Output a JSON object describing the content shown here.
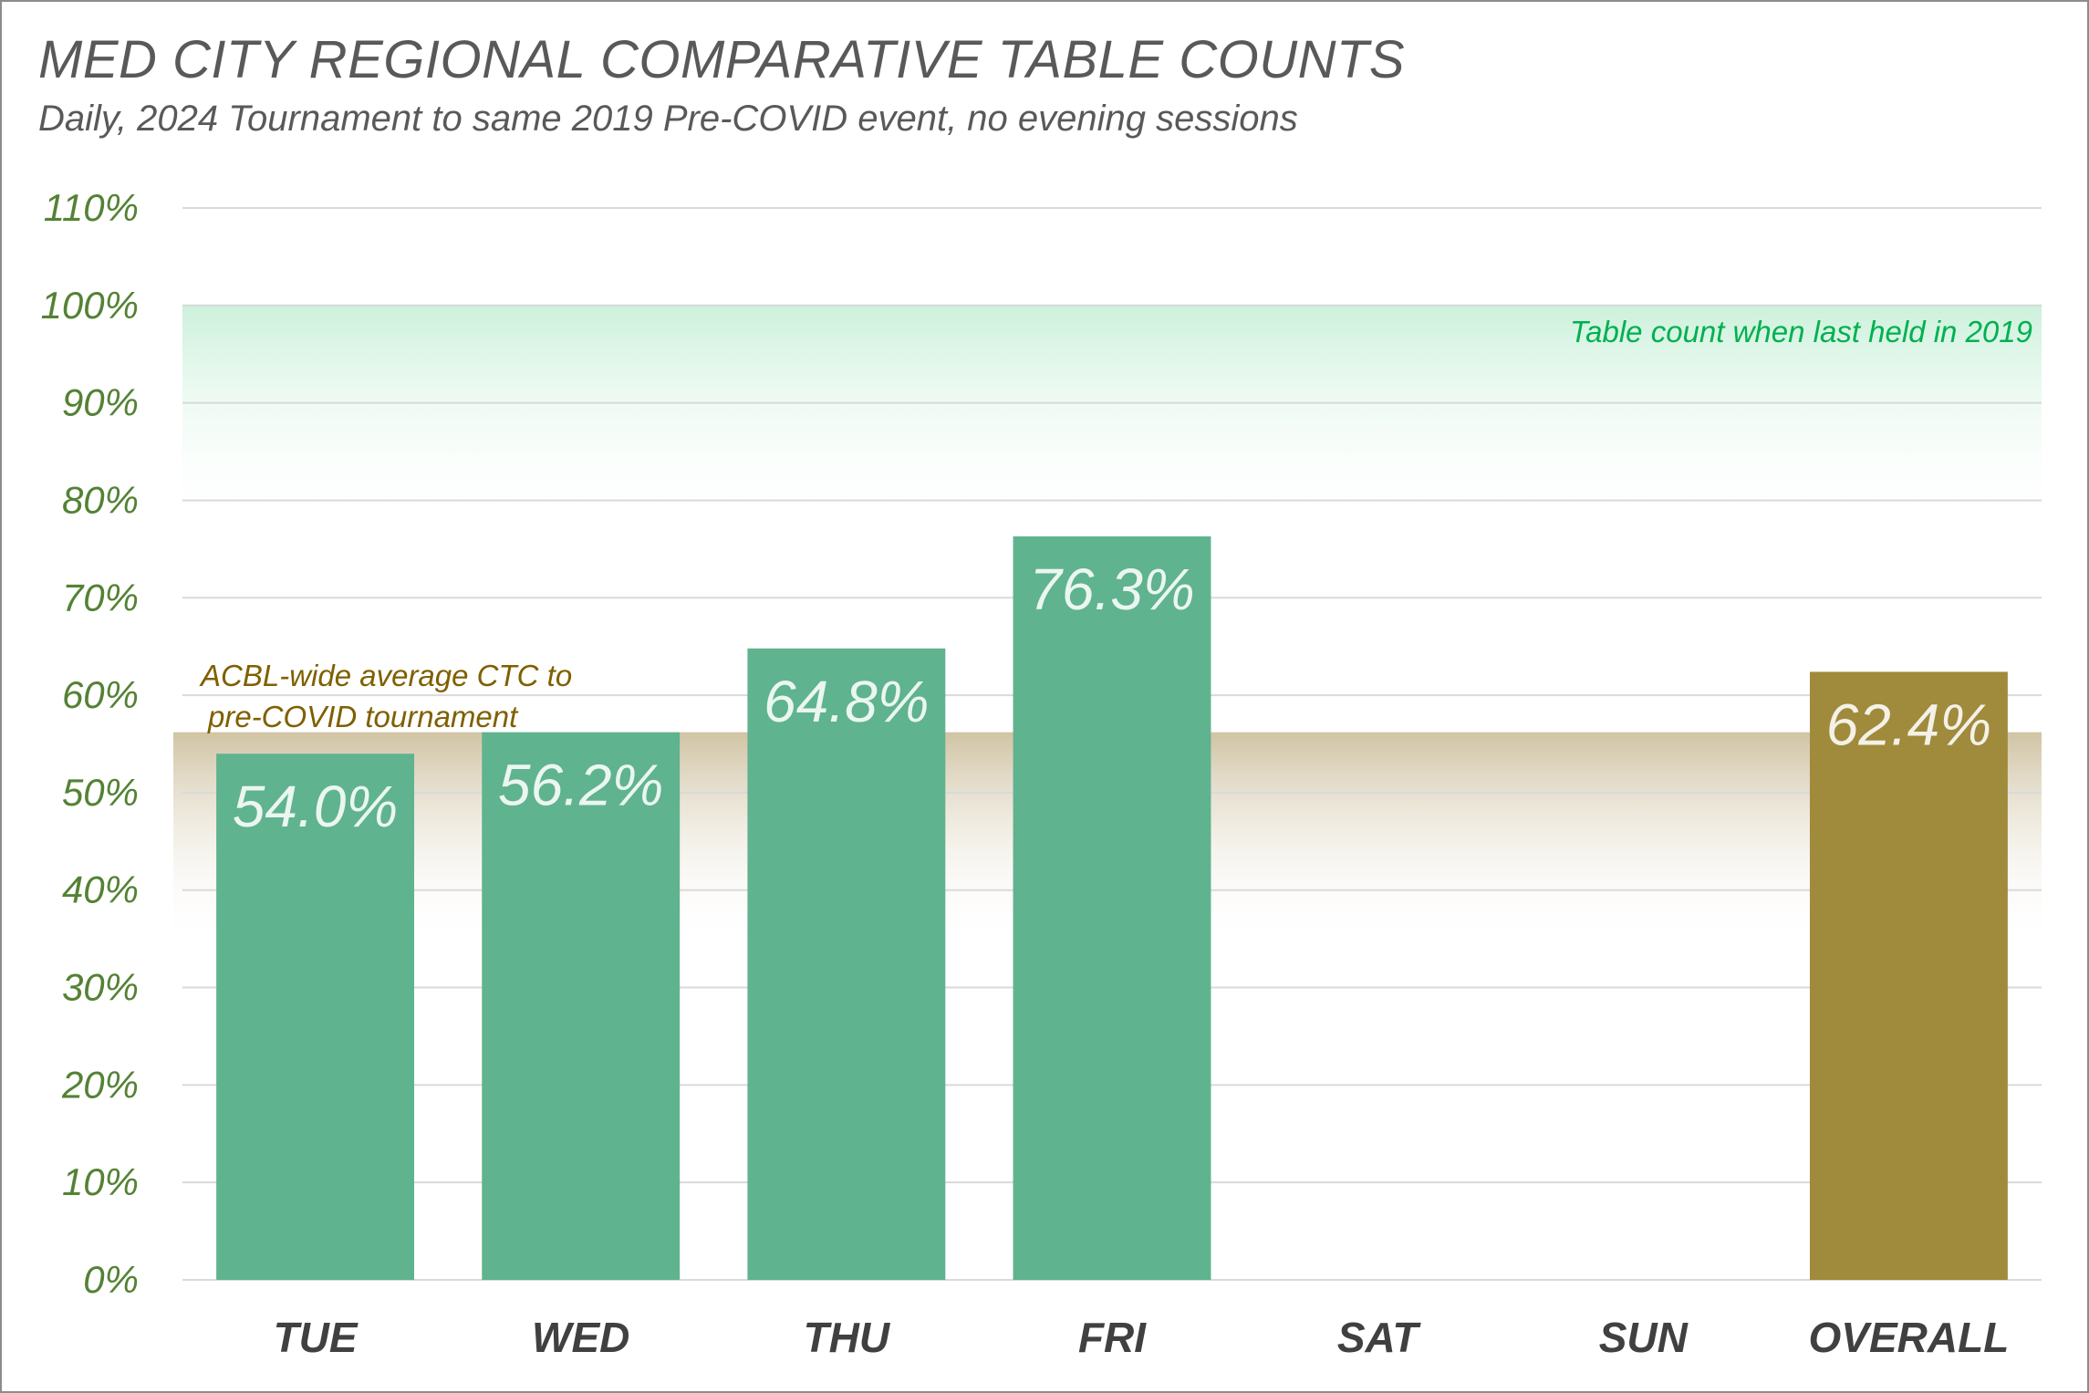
{
  "chart_data": {
    "type": "bar",
    "title": "MED CITY REGIONAL COMPARATIVE TABLE COUNTS",
    "subtitle": "Daily, 2024 Tournament to same 2019 Pre-COVID event, no evening sessions",
    "categories": [
      "TUE",
      "WED",
      "THU",
      "FRI",
      "SAT",
      "SUN",
      "OVERALL"
    ],
    "values": [
      54.0,
      56.2,
      64.8,
      76.3,
      null,
      null,
      62.4
    ],
    "data_labels": [
      "54.0%",
      "56.2%",
      "64.8%",
      "76.3%",
      "",
      "",
      "62.4%"
    ],
    "yticks": [
      "0%",
      "10%",
      "20%",
      "30%",
      "40%",
      "50%",
      "60%",
      "70%",
      "80%",
      "90%",
      "100%",
      "110%"
    ],
    "ylim": [
      0,
      110
    ],
    "grid": true,
    "colors": {
      "day_bar": "#5fb38e",
      "overall_bar": "#a08a3c",
      "baseline_band": "#c9f0d9",
      "average_band": "#c8b994",
      "gridline": "#d9d9d9",
      "tick": "#548235"
    },
    "reference_lines": [
      {
        "label": "Table count when last held in 2019",
        "value": 100
      },
      {
        "label_line1": "ACBL-wide average CTC to",
        "label_line2": "pre-COVID tournament",
        "value": 56.2
      }
    ]
  }
}
